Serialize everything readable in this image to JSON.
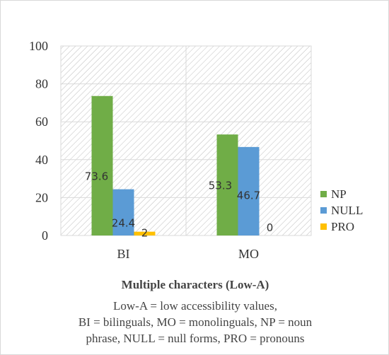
{
  "colors": {
    "NP": "#70ad47",
    "NULL": "#5b9bd5",
    "PRO": "#ffc000",
    "grid": "#d9d9d9",
    "hatch": "#bfbfbf"
  },
  "chart_data": {
    "type": "bar",
    "categories": [
      "BI",
      "MO"
    ],
    "series": [
      {
        "name": "NP",
        "values": [
          73.6,
          53.3
        ]
      },
      {
        "name": "NULL",
        "values": [
          24.4,
          46.7
        ]
      },
      {
        "name": "PRO",
        "values": [
          2,
          0
        ]
      }
    ],
    "data_labels": [
      [
        "73.6",
        "24.4",
        "2"
      ],
      [
        "53.3",
        "46.7",
        "0"
      ]
    ],
    "ylim": [
      0,
      100
    ],
    "yticks": [
      0,
      20,
      40,
      60,
      80,
      100
    ],
    "xlabel": "Multiple characters (Low-A)",
    "ylabel": "",
    "legend": "right",
    "grid": true,
    "plot_area_pattern": "diagonal hatch"
  },
  "caption": {
    "lines": [
      "Low-A = low accessibility values,",
      "BI = bilinguals, MO = monolinguals, NP = noun",
      "phrase, NULL = null forms, PRO = pronouns"
    ]
  }
}
